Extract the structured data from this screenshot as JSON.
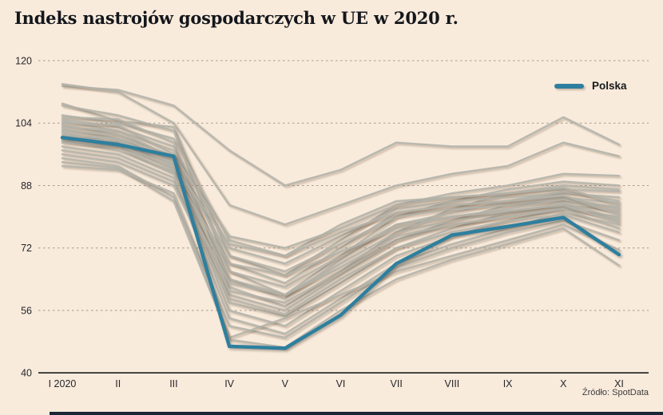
{
  "source": "Źródło: SpotData",
  "colors": {
    "background": "#f9ebdc",
    "highlight": "#2e7f9e",
    "eu_line": "#b2b1a8",
    "grid": "#a89a8a",
    "axis": "#1c1c1c",
    "bottom_bar": "#1c2638"
  },
  "chart_data": {
    "type": "line",
    "title": "Indeks nastrojów gospodarczych w UE w 2020 r.",
    "x_labels": [
      "I 2020",
      "II",
      "III",
      "IV",
      "V",
      "VI",
      "VII",
      "VIII",
      "IX",
      "X",
      "XI"
    ],
    "y_ticks": [
      120,
      104,
      88,
      72,
      56,
      40
    ],
    "ylim": [
      40,
      120
    ],
    "grid": "dashed horizontal",
    "legend_position": "top-right",
    "legend": {
      "label": "Polska",
      "color": "#2e7f9e"
    },
    "series": [
      {
        "name": "Polska",
        "emphasized": true,
        "color": "#2e7f9e",
        "values": [
          100.3,
          98.5,
          95.5,
          46.8,
          46.3,
          54.8,
          68.0,
          75.3,
          77.5,
          79.8,
          70.3
        ]
      }
    ],
    "background_series": {
      "note": "unlabeled lines for remaining EU member states (values estimated from pixels)",
      "color": "#b2b1a8",
      "values": [
        [
          113.5,
          112.5,
          108.5,
          97.0,
          88.0,
          92.0,
          99.0,
          98.0,
          98.0,
          105.5,
          98.5
        ],
        [
          114.0,
          112.0,
          104.0,
          83.0,
          78.0,
          83.0,
          88.0,
          91.0,
          93.0,
          99.0,
          95.5
        ],
        [
          109.0,
          104.5,
          103.0,
          70.0,
          65.0,
          74.0,
          83.0,
          86.0,
          88.0,
          91.0,
          90.5
        ],
        [
          108.5,
          106.0,
          102.0,
          66.0,
          60.0,
          70.0,
          80.0,
          84.0,
          87.0,
          89.0,
          88.0
        ],
        [
          106.0,
          104.0,
          100.0,
          74.0,
          70.0,
          78.0,
          84.0,
          85.0,
          86.0,
          88.0,
          87.0
        ],
        [
          105.5,
          105.0,
          99.0,
          62.0,
          57.0,
          66.0,
          76.0,
          82.0,
          86.0,
          87.0,
          86.5
        ],
        [
          105.0,
          103.0,
          98.0,
          72.0,
          68.0,
          75.0,
          82.0,
          84.0,
          85.0,
          86.0,
          85.0
        ],
        [
          104.5,
          102.0,
          97.0,
          68.0,
          63.0,
          72.0,
          81.0,
          83.0,
          84.0,
          86.5,
          84.0
        ],
        [
          104.0,
          103.5,
          96.0,
          64.0,
          59.0,
          69.0,
          78.0,
          81.0,
          84.0,
          85.0,
          83.5
        ],
        [
          103.5,
          101.0,
          95.5,
          75.0,
          72.0,
          77.0,
          83.0,
          85.0,
          86.0,
          87.5,
          83.0
        ],
        [
          103.0,
          102.0,
          95.0,
          60.0,
          56.0,
          65.0,
          74.0,
          79.0,
          83.0,
          84.0,
          82.5
        ],
        [
          102.5,
          100.0,
          94.5,
          70.0,
          66.0,
          73.0,
          80.0,
          82.0,
          83.0,
          85.0,
          82.0
        ],
        [
          102.0,
          101.0,
          94.0,
          58.0,
          54.5,
          63.0,
          72.0,
          77.0,
          81.0,
          83.0,
          81.5
        ],
        [
          101.5,
          99.0,
          93.5,
          66.0,
          62.0,
          70.0,
          78.0,
          80.0,
          82.0,
          84.5,
          81.0
        ],
        [
          101.0,
          100.0,
          93.0,
          73.0,
          70.0,
          76.0,
          81.0,
          83.0,
          84.0,
          85.5,
          80.5
        ],
        [
          100.5,
          98.0,
          92.5,
          56.0,
          52.0,
          61.0,
          70.0,
          75.0,
          79.0,
          82.0,
          80.0
        ],
        [
          100.0,
          99.5,
          92.0,
          64.0,
          60.0,
          68.0,
          76.0,
          79.0,
          81.0,
          83.5,
          79.5
        ],
        [
          99.5,
          97.0,
          91.5,
          61.0,
          58.0,
          66.0,
          74.0,
          78.0,
          80.0,
          82.5,
          79.0
        ],
        [
          99.0,
          98.0,
          91.0,
          68.0,
          65.0,
          71.0,
          77.0,
          80.0,
          81.5,
          83.0,
          78.5
        ],
        [
          98.0,
          96.0,
          90.0,
          54.0,
          50.0,
          59.0,
          68.0,
          73.0,
          77.0,
          81.0,
          78.0
        ],
        [
          97.0,
          95.0,
          89.0,
          63.0,
          60.0,
          67.0,
          75.0,
          78.0,
          80.0,
          82.0,
          77.0
        ],
        [
          96.0,
          94.0,
          88.0,
          59.0,
          55.0,
          64.0,
          72.0,
          76.0,
          79.0,
          80.5,
          76.0
        ],
        [
          95.0,
          93.0,
          85.0,
          52.0,
          49.0,
          58.0,
          67.0,
          72.0,
          76.0,
          79.0,
          74.0
        ],
        [
          94.0,
          92.5,
          84.0,
          49.0,
          54.0,
          60.0,
          66.0,
          70.0,
          74.0,
          78.0,
          71.5
        ],
        [
          93.0,
          92.0,
          86.0,
          48.5,
          46.5,
          56.0,
          64.0,
          69.0,
          73.0,
          77.0,
          67.5
        ]
      ]
    }
  }
}
